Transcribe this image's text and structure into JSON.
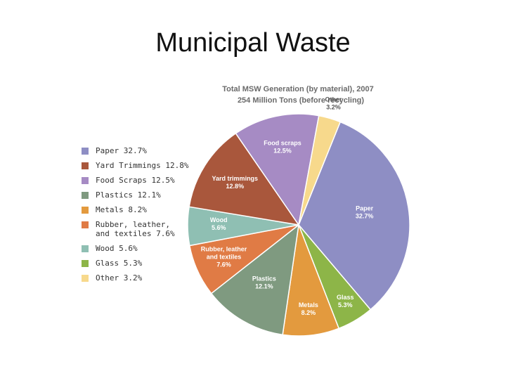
{
  "slide": {
    "title": "Municipal Waste"
  },
  "legend": [
    {
      "label": "Paper 32.7%",
      "color": "#8e8ec4"
    },
    {
      "label": "Yard Trimmings 12.8%",
      "color": "#a9573c"
    },
    {
      "label": "Food Scraps 12.5%",
      "color": "#a68bc4"
    },
    {
      "label": "Plastics 12.1%",
      "color": "#7f9a80"
    },
    {
      "label": "Metals 8.2%",
      "color": "#e39a3e"
    },
    {
      "label": "Rubber, leather,\nand textiles 7.6%",
      "color": "#e07b45"
    },
    {
      "label": "Wood 5.6%",
      "color": "#8fbfb3"
    },
    {
      "label": "Glass 5.3%",
      "color": "#8db548"
    },
    {
      "label": "Other 3.2%",
      "color": "#f7d98c"
    }
  ],
  "chart_data": {
    "type": "pie",
    "title": "Total MSW Generation (by material), 2007",
    "subtitle": "254 Million Tons (before recycling)",
    "slices": [
      {
        "label": "Paper",
        "pct_text": "32.7%",
        "value": 32.7,
        "color": "#8e8ec4"
      },
      {
        "label": "Glass",
        "pct_text": "5.3%",
        "value": 5.3,
        "color": "#8db548"
      },
      {
        "label": "Metals",
        "pct_text": "8.2%",
        "value": 8.2,
        "color": "#e39a3e"
      },
      {
        "label": "Plastics",
        "pct_text": "12.1%",
        "value": 12.1,
        "color": "#7f9a80"
      },
      {
        "label": "Rubber, leather and textiles",
        "pct_text": "7.6%",
        "value": 7.6,
        "color": "#e07b45"
      },
      {
        "label": "Wood",
        "pct_text": "5.6%",
        "value": 5.6,
        "color": "#8fbfb3"
      },
      {
        "label": "Yard trimmings",
        "pct_text": "12.8%",
        "value": 12.8,
        "color": "#a9573c"
      },
      {
        "label": "Food scraps",
        "pct_text": "12.5%",
        "value": 12.5,
        "color": "#a68bc4"
      },
      {
        "label": "Other",
        "pct_text": "3.2%",
        "value": 3.2,
        "color": "#f7d98c"
      }
    ]
  }
}
